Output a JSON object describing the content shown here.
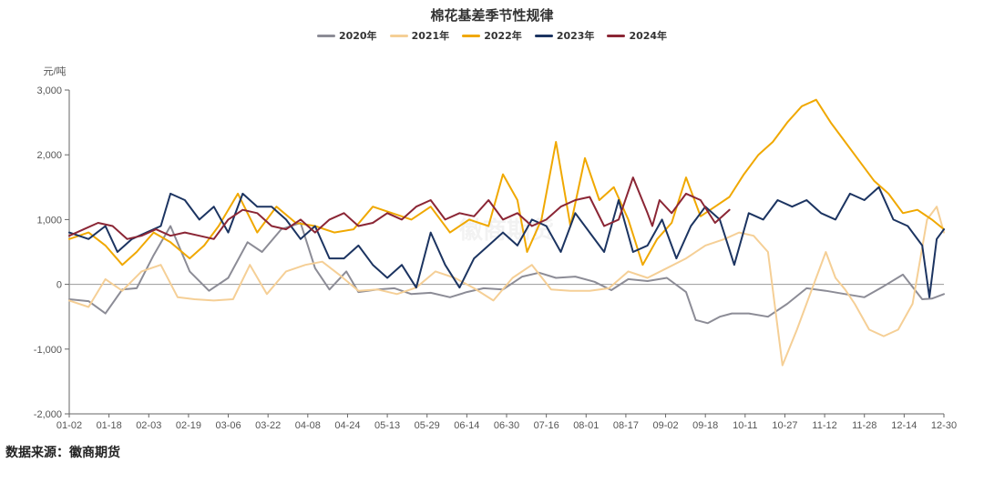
{
  "chart_data": {
    "type": "line",
    "title": "棉花基差季节性规律",
    "ylabel": "元/吨",
    "xlabel": "",
    "ylim": [
      -2000,
      3000
    ],
    "y_ticks": [
      -2000,
      -1000,
      0,
      1000,
      2000,
      3000
    ],
    "y_tick_labels": [
      "-2,000",
      "-1,000",
      "0",
      "1,000",
      "2,000",
      "3,000"
    ],
    "x_tick_labels": [
      "01-02",
      "01-18",
      "02-03",
      "02-19",
      "03-06",
      "03-22",
      "04-08",
      "04-24",
      "05-13",
      "05-29",
      "06-14",
      "06-30",
      "07-16",
      "08-01",
      "08-17",
      "09-02",
      "09-18",
      "10-11",
      "10-27",
      "11-12",
      "11-28",
      "12-14",
      "12-30"
    ],
    "x_domain": [
      0,
      363
    ],
    "legend_position": "top-center",
    "series": [
      {
        "name": "2020年",
        "color": "#8c8c96",
        "x": [
          0,
          8,
          15,
          22,
          28,
          35,
          42,
          50,
          58,
          66,
          74,
          80,
          88,
          96,
          102,
          108,
          115,
          120,
          128,
          135,
          142,
          150,
          158,
          165,
          172,
          180,
          188,
          195,
          202,
          210,
          218,
          225,
          232,
          240,
          248,
          256,
          260,
          265,
          270,
          275,
          282,
          290,
          298,
          306,
          314,
          322,
          330,
          338,
          346,
          354,
          358,
          363
        ],
        "values": [
          -230,
          -260,
          -450,
          -80,
          -60,
          450,
          900,
          200,
          -100,
          100,
          650,
          500,
          850,
          950,
          250,
          -80,
          200,
          -120,
          -80,
          -60,
          -150,
          -130,
          -200,
          -120,
          -60,
          -80,
          120,
          180,
          100,
          120,
          40,
          -90,
          80,
          50,
          100,
          -120,
          -550,
          -600,
          -500,
          -450,
          -450,
          -500,
          -300,
          -60,
          -100,
          -150,
          -200,
          -30,
          150,
          -230,
          -220,
          -150
        ],
        "visible_labels": []
      },
      {
        "name": "2021年",
        "color": "#f5cf96",
        "x": [
          0,
          8,
          15,
          22,
          30,
          38,
          45,
          52,
          60,
          68,
          75,
          82,
          90,
          98,
          105,
          112,
          120,
          128,
          136,
          144,
          152,
          160,
          168,
          176,
          184,
          192,
          200,
          208,
          216,
          224,
          232,
          240,
          248,
          256,
          264,
          272,
          278,
          284,
          290,
          296,
          302,
          308,
          314,
          318,
          322,
          326,
          332,
          338,
          344,
          350,
          356,
          360,
          363
        ],
        "values": [
          -250,
          -350,
          80,
          -100,
          200,
          300,
          -200,
          -230,
          -250,
          -230,
          300,
          -150,
          200,
          300,
          350,
          150,
          -100,
          -80,
          -150,
          -50,
          200,
          100,
          -60,
          -250,
          100,
          300,
          -80,
          -100,
          -100,
          -60,
          200,
          100,
          250,
          400,
          600,
          700,
          800,
          750,
          500,
          -1250,
          -700,
          -100,
          500,
          100,
          -80,
          -300,
          -700,
          -800,
          -700,
          -300,
          1000,
          1200,
          800
        ],
        "visible_labels": []
      },
      {
        "name": "2022年",
        "color": "#f0a800",
        "x": [
          0,
          8,
          15,
          22,
          28,
          35,
          42,
          50,
          56,
          62,
          70,
          78,
          86,
          94,
          102,
          110,
          118,
          126,
          134,
          142,
          150,
          158,
          166,
          174,
          180,
          186,
          190,
          196,
          202,
          208,
          214,
          220,
          226,
          232,
          238,
          244,
          250,
          256,
          262,
          268,
          274,
          280,
          286,
          292,
          298,
          304,
          310,
          316,
          322,
          328,
          334,
          340,
          346,
          352,
          358,
          363
        ],
        "values": [
          700,
          800,
          600,
          300,
          500,
          800,
          650,
          400,
          600,
          900,
          1400,
          800,
          1200,
          950,
          900,
          800,
          850,
          1200,
          1100,
          1000,
          1200,
          800,
          1000,
          900,
          1700,
          1300,
          500,
          1000,
          2200,
          900,
          1950,
          1300,
          1500,
          1000,
          300,
          700,
          950,
          1650,
          1050,
          1200,
          1350,
          1700,
          2000,
          2200,
          2500,
          2750,
          2850,
          2500,
          2200,
          1900,
          1600,
          1400,
          1100,
          1150,
          1000,
          850
        ],
        "visible_labels": []
      },
      {
        "name": "2023年",
        "color": "#1c3461",
        "x": [
          0,
          8,
          15,
          20,
          26,
          32,
          38,
          42,
          48,
          54,
          60,
          66,
          72,
          78,
          84,
          90,
          96,
          102,
          108,
          114,
          120,
          126,
          132,
          138,
          144,
          150,
          156,
          162,
          168,
          174,
          180,
          186,
          192,
          198,
          204,
          210,
          216,
          222,
          228,
          234,
          240,
          246,
          252,
          258,
          264,
          270,
          276,
          282,
          288,
          294,
          300,
          306,
          312,
          318,
          324,
          330,
          336,
          342,
          348,
          354,
          357,
          360,
          363
        ],
        "values": [
          800,
          700,
          900,
          500,
          700,
          800,
          900,
          1400,
          1300,
          1000,
          1200,
          800,
          1400,
          1200,
          1200,
          1000,
          700,
          900,
          400,
          400,
          600,
          300,
          100,
          300,
          -50,
          800,
          300,
          -50,
          400,
          600,
          800,
          600,
          1000,
          900,
          500,
          1100,
          800,
          500,
          1300,
          500,
          600,
          1000,
          400,
          900,
          1200,
          1000,
          300,
          1100,
          1000,
          1300,
          1200,
          1300,
          1100,
          1000,
          1400,
          1300,
          1500,
          1000,
          900,
          600,
          -200,
          700,
          850
        ],
        "visible_labels": []
      },
      {
        "name": "2024年",
        "color": "#8b2635",
        "x": [
          0,
          6,
          12,
          18,
          24,
          30,
          36,
          42,
          48,
          54,
          60,
          66,
          72,
          78,
          84,
          90,
          96,
          102,
          108,
          114,
          120,
          126,
          132,
          138,
          144,
          150,
          156,
          162,
          168,
          174,
          180,
          186,
          192,
          198,
          204,
          210,
          216,
          222,
          228,
          234,
          240,
          242,
          245,
          250,
          256,
          262,
          268,
          274
        ],
        "values": [
          750,
          850,
          950,
          900,
          700,
          750,
          850,
          750,
          800,
          750,
          700,
          1000,
          1150,
          1100,
          900,
          850,
          1000,
          800,
          1000,
          1100,
          900,
          950,
          1100,
          1000,
          1200,
          1300,
          1000,
          1100,
          1050,
          1300,
          1000,
          1100,
          900,
          1000,
          1200,
          1300,
          1350,
          900,
          1000,
          1650,
          1100,
          900,
          1300,
          1100,
          1400,
          1300,
          950,
          1150
        ],
        "visible_labels": []
      }
    ]
  },
  "watermark": "徽商期货",
  "footer": {
    "source": "数据来源：徽商期货"
  }
}
